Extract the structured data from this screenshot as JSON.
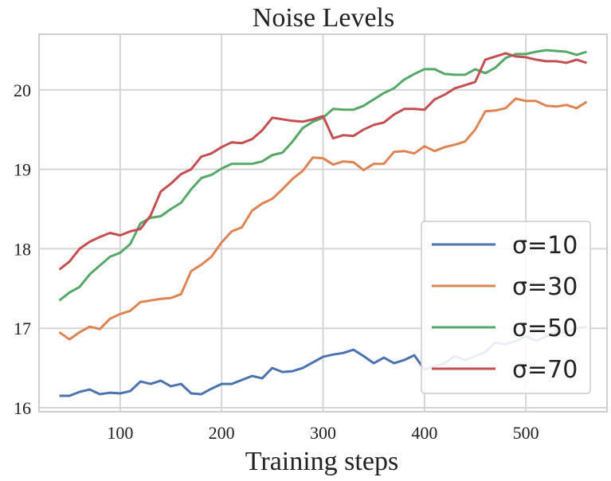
{
  "chart_data": {
    "type": "line",
    "title": "Noise Levels",
    "xlabel": "Training steps",
    "ylabel": "",
    "xlim": [
      20,
      580
    ],
    "ylim": [
      15.95,
      20.7
    ],
    "xticks": [
      100,
      200,
      300,
      400,
      500
    ],
    "yticks": [
      16,
      17,
      18,
      19,
      20
    ],
    "grid": true,
    "legend_position": "lower-right",
    "x": [
      40,
      50,
      60,
      70,
      80,
      90,
      100,
      110,
      120,
      130,
      140,
      150,
      160,
      170,
      180,
      190,
      200,
      210,
      220,
      230,
      240,
      250,
      260,
      270,
      280,
      290,
      300,
      310,
      320,
      330,
      340,
      350,
      360,
      370,
      380,
      390,
      400,
      410,
      420,
      430,
      440,
      450,
      460,
      470,
      480,
      490,
      500,
      510,
      520,
      530,
      540,
      550,
      560
    ],
    "series": [
      {
        "name": "σ=10",
        "color": "#4c72b0",
        "values": [
          16.15,
          16.15,
          16.2,
          16.23,
          16.17,
          16.19,
          16.18,
          16.21,
          16.33,
          16.3,
          16.34,
          16.27,
          16.3,
          16.18,
          16.17,
          16.24,
          16.3,
          16.3,
          16.35,
          16.4,
          16.37,
          16.5,
          16.45,
          16.46,
          16.5,
          16.57,
          16.64,
          16.67,
          16.69,
          16.73,
          16.65,
          16.56,
          16.63,
          16.56,
          16.6,
          16.66,
          16.48,
          16.52,
          16.56,
          16.65,
          16.6,
          16.65,
          16.7,
          16.82,
          16.8,
          16.84,
          16.9,
          16.84,
          16.9,
          16.95,
          16.95,
          17.0,
          17.02
        ]
      },
      {
        "name": "σ=30",
        "color": "#dd8452",
        "values": [
          16.95,
          16.86,
          16.95,
          17.02,
          16.99,
          17.12,
          17.18,
          17.22,
          17.33,
          17.35,
          17.37,
          17.38,
          17.43,
          17.72,
          17.8,
          17.9,
          18.08,
          18.22,
          18.27,
          18.48,
          18.57,
          18.63,
          18.75,
          18.88,
          18.98,
          19.15,
          19.14,
          19.06,
          19.1,
          19.09,
          18.99,
          19.07,
          19.07,
          19.22,
          19.23,
          19.2,
          19.29,
          19.23,
          19.28,
          19.31,
          19.35,
          19.5,
          19.73,
          19.74,
          19.77,
          19.89,
          19.86,
          19.86,
          19.8,
          19.79,
          19.81,
          19.77,
          19.85
        ]
      },
      {
        "name": "σ=50",
        "color": "#55a868",
        "values": [
          17.35,
          17.45,
          17.52,
          17.68,
          17.79,
          17.9,
          17.95,
          18.06,
          18.32,
          18.39,
          18.41,
          18.5,
          18.58,
          18.75,
          18.89,
          18.93,
          19.01,
          19.07,
          19.07,
          19.07,
          19.1,
          19.18,
          19.21,
          19.35,
          19.52,
          19.6,
          19.65,
          19.76,
          19.75,
          19.75,
          19.8,
          19.88,
          19.96,
          20.02,
          20.13,
          20.2,
          20.26,
          20.26,
          20.2,
          20.19,
          20.19,
          20.26,
          20.21,
          20.28,
          20.4,
          20.45,
          20.45,
          20.48,
          20.5,
          20.49,
          20.48,
          20.44,
          20.48
        ]
      },
      {
        "name": "σ=70",
        "color": "#c44e52",
        "values": [
          17.74,
          17.84,
          18.0,
          18.09,
          18.15,
          18.2,
          18.17,
          18.22,
          18.25,
          18.42,
          18.72,
          18.82,
          18.94,
          19.0,
          19.16,
          19.2,
          19.28,
          19.34,
          19.33,
          19.38,
          19.49,
          19.65,
          19.63,
          19.61,
          19.6,
          19.63,
          19.67,
          19.39,
          19.43,
          19.42,
          19.5,
          19.56,
          19.59,
          19.69,
          19.76,
          19.76,
          19.75,
          19.88,
          19.94,
          20.02,
          20.06,
          20.1,
          20.38,
          20.42,
          20.46,
          20.42,
          20.41,
          20.38,
          20.36,
          20.36,
          20.34,
          20.38,
          20.34
        ]
      }
    ]
  }
}
